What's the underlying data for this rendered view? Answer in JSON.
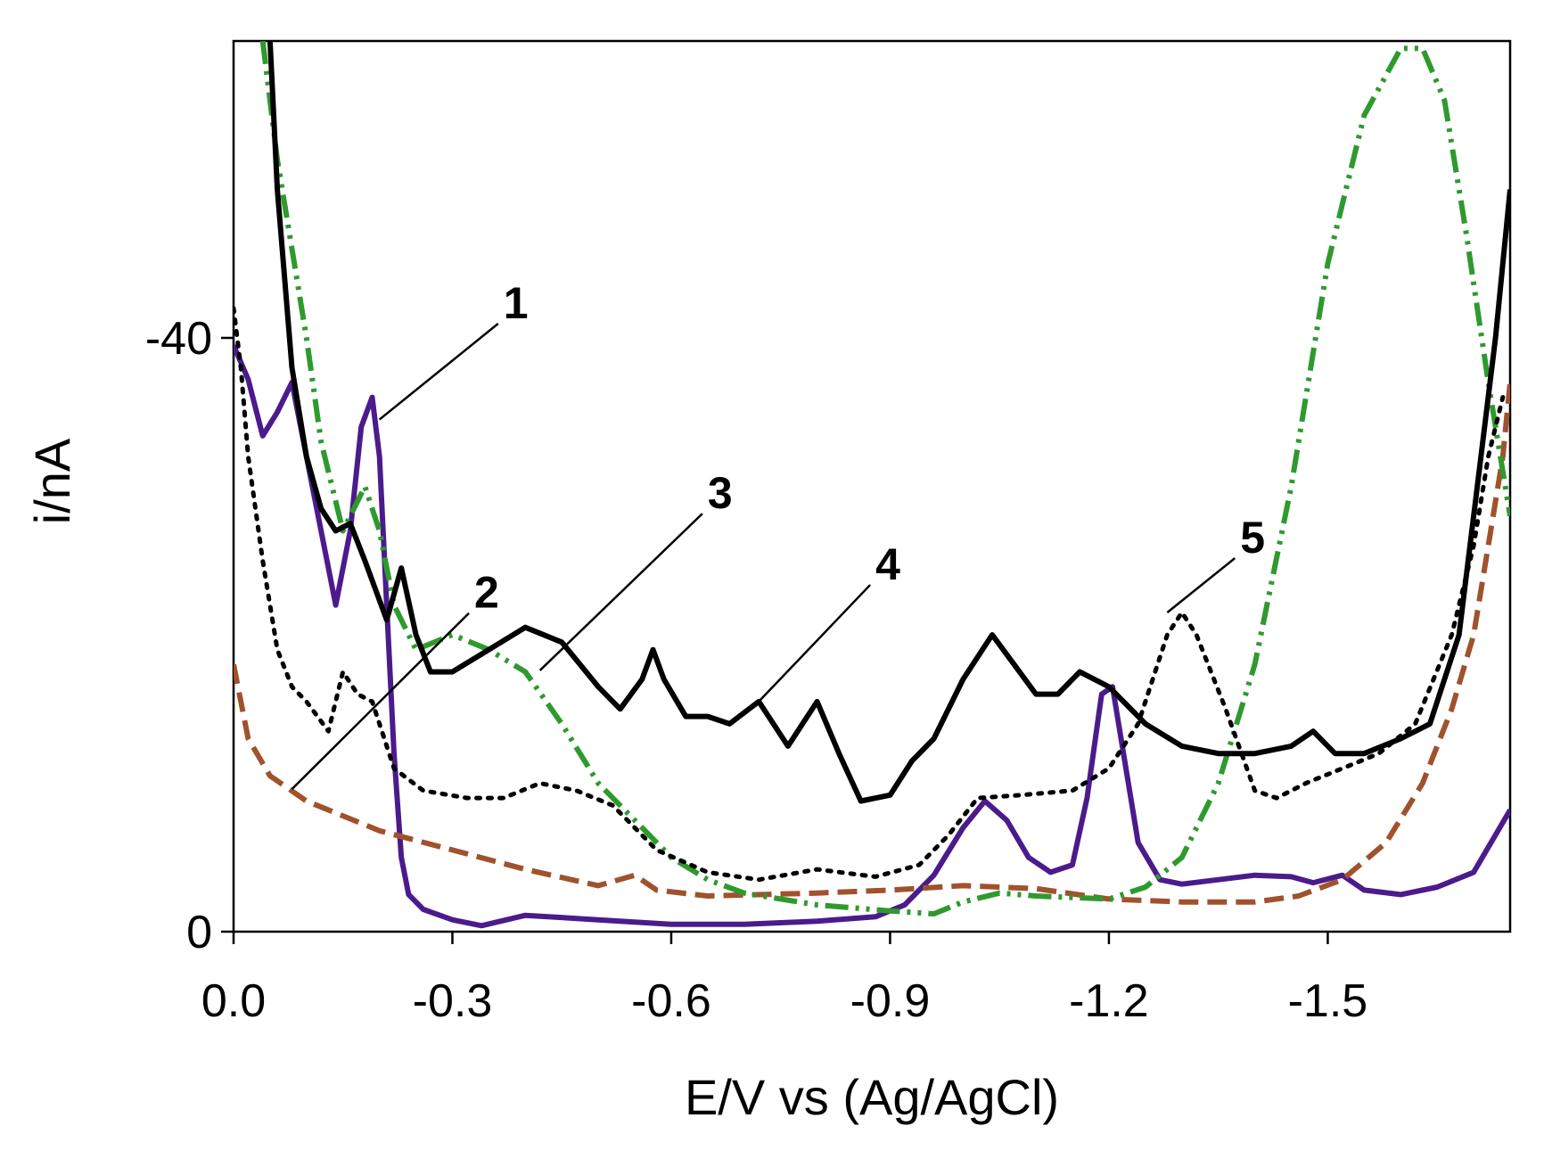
{
  "chart_data": {
    "type": "line",
    "title": "",
    "xlabel": "E/V vs (Ag/AgCl)",
    "ylabel": "i/nA",
    "xlim": [
      0.0,
      -1.75
    ],
    "ylim": [
      0,
      -60
    ],
    "x_ticks": [
      {
        "value": 0.0,
        "label": "0.0"
      },
      {
        "value": -0.3,
        "label": "-0.3"
      },
      {
        "value": -0.6,
        "label": "-0.6"
      },
      {
        "value": -0.9,
        "label": "-0.9"
      },
      {
        "value": -1.2,
        "label": "-1.2"
      },
      {
        "value": -1.5,
        "label": "-1.5"
      }
    ],
    "y_ticks": [
      {
        "value": 0,
        "label": "0"
      },
      {
        "value": -40,
        "label": "-40"
      }
    ],
    "series": [
      {
        "name": "1",
        "color": "#4b1b8c",
        "dash": "solid",
        "points": [
          [
            0,
            -39.5
          ],
          [
            -0.02,
            -37.2
          ],
          [
            -0.04,
            -33.4
          ],
          [
            -0.06,
            -35.0
          ],
          [
            -0.08,
            -37.0
          ],
          [
            -0.1,
            -32.0
          ],
          [
            -0.12,
            -27.0
          ],
          [
            -0.14,
            -22.0
          ],
          [
            -0.16,
            -27.0
          ],
          [
            -0.175,
            -34.0
          ],
          [
            -0.19,
            -36.0
          ],
          [
            -0.2,
            -32.0
          ],
          [
            -0.21,
            -22.0
          ],
          [
            -0.22,
            -12.0
          ],
          [
            -0.23,
            -5.0
          ],
          [
            -0.24,
            -2.5
          ],
          [
            -0.26,
            -1.5
          ],
          [
            -0.3,
            -0.8
          ],
          [
            -0.34,
            -0.4
          ],
          [
            -0.4,
            -1.1
          ],
          [
            -0.5,
            -0.8
          ],
          [
            -0.6,
            -0.5
          ],
          [
            -0.7,
            -0.5
          ],
          [
            -0.8,
            -0.7
          ],
          [
            -0.88,
            -1.0
          ],
          [
            -0.92,
            -1.8
          ],
          [
            -0.96,
            -3.8
          ],
          [
            -1.0,
            -7.0
          ],
          [
            -1.03,
            -8.8
          ],
          [
            -1.06,
            -7.5
          ],
          [
            -1.09,
            -5.0
          ],
          [
            -1.12,
            -4.0
          ],
          [
            -1.15,
            -4.5
          ],
          [
            -1.17,
            -9.0
          ],
          [
            -1.19,
            -16.0
          ],
          [
            -1.205,
            -16.5
          ],
          [
            -1.22,
            -12.0
          ],
          [
            -1.24,
            -6.0
          ],
          [
            -1.27,
            -3.5
          ],
          [
            -1.3,
            -3.2
          ],
          [
            -1.4,
            -3.8
          ],
          [
            -1.45,
            -3.7
          ],
          [
            -1.48,
            -3.3
          ],
          [
            -1.52,
            -3.8
          ],
          [
            -1.55,
            -2.8
          ],
          [
            -1.6,
            -2.5
          ],
          [
            -1.65,
            -3.0
          ],
          [
            -1.7,
            -4.0
          ],
          [
            -1.75,
            -8.2
          ]
        ]
      },
      {
        "name": "2",
        "color": "#a0522d",
        "dash": "dash",
        "points": [
          [
            0,
            -18.0
          ],
          [
            -0.02,
            -13.0
          ],
          [
            -0.05,
            -10.5
          ],
          [
            -0.1,
            -8.8
          ],
          [
            -0.2,
            -6.8
          ],
          [
            -0.3,
            -5.5
          ],
          [
            -0.4,
            -4.2
          ],
          [
            -0.5,
            -3.1
          ],
          [
            -0.55,
            -3.8
          ],
          [
            -0.58,
            -2.8
          ],
          [
            -0.65,
            -2.4
          ],
          [
            -0.8,
            -2.6
          ],
          [
            -0.9,
            -2.8
          ],
          [
            -1.0,
            -3.1
          ],
          [
            -1.1,
            -2.9
          ],
          [
            -1.2,
            -2.2
          ],
          [
            -1.3,
            -2.0
          ],
          [
            -1.4,
            -2.0
          ],
          [
            -1.46,
            -2.4
          ],
          [
            -1.52,
            -3.5
          ],
          [
            -1.58,
            -6.0
          ],
          [
            -1.63,
            -10.0
          ],
          [
            -1.67,
            -15.0
          ],
          [
            -1.7,
            -20.0
          ],
          [
            -1.72,
            -26.0
          ],
          [
            -1.74,
            -32.0
          ],
          [
            -1.75,
            -37.0
          ]
        ]
      },
      {
        "name": "3",
        "color": "#2e9a2e",
        "dash": "dashdotdot",
        "points": [
          [
            -0.04,
            -60.0
          ],
          [
            -0.06,
            -52.0
          ],
          [
            -0.08,
            -46.0
          ],
          [
            -0.1,
            -40.0
          ],
          [
            -0.12,
            -33.0
          ],
          [
            -0.15,
            -27.0
          ],
          [
            -0.18,
            -30.0
          ],
          [
            -0.2,
            -27.0
          ],
          [
            -0.22,
            -22.0
          ],
          [
            -0.25,
            -19.0
          ],
          [
            -0.3,
            -20.0
          ],
          [
            -0.35,
            -19.0
          ],
          [
            -0.4,
            -17.5
          ],
          [
            -0.45,
            -14.0
          ],
          [
            -0.5,
            -10.0
          ],
          [
            -0.55,
            -7.5
          ],
          [
            -0.6,
            -5.0
          ],
          [
            -0.65,
            -3.5
          ],
          [
            -0.7,
            -2.6
          ],
          [
            -0.8,
            -1.8
          ],
          [
            -0.9,
            -1.4
          ],
          [
            -0.96,
            -1.2
          ],
          [
            -1.0,
            -2.0
          ],
          [
            -1.05,
            -2.6
          ],
          [
            -1.1,
            -2.4
          ],
          [
            -1.2,
            -2.2
          ],
          [
            -1.25,
            -3.0
          ],
          [
            -1.3,
            -5.0
          ],
          [
            -1.35,
            -10.0
          ],
          [
            -1.4,
            -18.0
          ],
          [
            -1.45,
            -30.0
          ],
          [
            -1.5,
            -45.0
          ],
          [
            -1.55,
            -55.0
          ],
          [
            -1.6,
            -59.5
          ],
          [
            -1.63,
            -59.5
          ],
          [
            -1.66,
            -56.0
          ],
          [
            -1.69,
            -47.0
          ],
          [
            -1.72,
            -37.0
          ],
          [
            -1.75,
            -28.0
          ]
        ]
      },
      {
        "name": "4",
        "color": "#000000",
        "dash": "solid",
        "points": [
          [
            -0.05,
            -60.0
          ],
          [
            -0.06,
            -50.0
          ],
          [
            -0.07,
            -44.0
          ],
          [
            -0.08,
            -38.0
          ],
          [
            -0.1,
            -32.0
          ],
          [
            -0.12,
            -28.5
          ],
          [
            -0.14,
            -27.0
          ],
          [
            -0.16,
            -27.5
          ],
          [
            -0.18,
            -25.0
          ],
          [
            -0.21,
            -21.0
          ],
          [
            -0.23,
            -24.5
          ],
          [
            -0.25,
            -20.0
          ],
          [
            -0.27,
            -17.5
          ],
          [
            -0.3,
            -17.5
          ],
          [
            -0.35,
            -19.0
          ],
          [
            -0.4,
            -20.5
          ],
          [
            -0.45,
            -19.5
          ],
          [
            -0.5,
            -16.5
          ],
          [
            -0.53,
            -15.0
          ],
          [
            -0.56,
            -17.0
          ],
          [
            -0.575,
            -19.0
          ],
          [
            -0.59,
            -17.0
          ],
          [
            -0.62,
            -14.5
          ],
          [
            -0.65,
            -14.5
          ],
          [
            -0.68,
            -14.0
          ],
          [
            -0.72,
            -15.5
          ],
          [
            -0.76,
            -12.5
          ],
          [
            -0.8,
            -15.5
          ],
          [
            -0.83,
            -12.0
          ],
          [
            -0.86,
            -8.8
          ],
          [
            -0.9,
            -9.2
          ],
          [
            -0.93,
            -11.5
          ],
          [
            -0.96,
            -13.0
          ],
          [
            -1.0,
            -17.0
          ],
          [
            -1.04,
            -20.0
          ],
          [
            -1.07,
            -18.0
          ],
          [
            -1.1,
            -16.0
          ],
          [
            -1.13,
            -16.0
          ],
          [
            -1.16,
            -17.5
          ],
          [
            -1.2,
            -16.5
          ],
          [
            -1.25,
            -14.0
          ],
          [
            -1.3,
            -12.5
          ],
          [
            -1.35,
            -12.0
          ],
          [
            -1.4,
            -12.0
          ],
          [
            -1.45,
            -12.5
          ],
          [
            -1.48,
            -13.5
          ],
          [
            -1.51,
            -12.0
          ],
          [
            -1.55,
            -12.0
          ],
          [
            -1.6,
            -13.0
          ],
          [
            -1.64,
            -14.0
          ],
          [
            -1.68,
            -20.0
          ],
          [
            -1.7,
            -28.0
          ],
          [
            -1.73,
            -40.0
          ],
          [
            -1.75,
            -50.0
          ]
        ]
      },
      {
        "name": "5",
        "color": "#000000",
        "dash": "dot",
        "points": [
          [
            0,
            -42.0
          ],
          [
            -0.01,
            -38.0
          ],
          [
            -0.02,
            -32.0
          ],
          [
            -0.04,
            -25.0
          ],
          [
            -0.06,
            -19.0
          ],
          [
            -0.08,
            -16.5
          ],
          [
            -0.1,
            -15.5
          ],
          [
            -0.13,
            -13.5
          ],
          [
            -0.15,
            -17.5
          ],
          [
            -0.17,
            -16.0
          ],
          [
            -0.19,
            -15.5
          ],
          [
            -0.22,
            -11.0
          ],
          [
            -0.26,
            -9.5
          ],
          [
            -0.32,
            -9.0
          ],
          [
            -0.37,
            -9.0
          ],
          [
            -0.42,
            -10.0
          ],
          [
            -0.47,
            -9.5
          ],
          [
            -0.52,
            -8.5
          ],
          [
            -0.58,
            -5.5
          ],
          [
            -0.65,
            -4.0
          ],
          [
            -0.72,
            -3.5
          ],
          [
            -0.8,
            -4.2
          ],
          [
            -0.88,
            -3.7
          ],
          [
            -0.94,
            -4.5
          ],
          [
            -0.98,
            -6.5
          ],
          [
            -1.02,
            -9.0
          ],
          [
            -1.08,
            -9.2
          ],
          [
            -1.15,
            -9.5
          ],
          [
            -1.2,
            -11.0
          ],
          [
            -1.24,
            -14.0
          ],
          [
            -1.28,
            -20.0
          ],
          [
            -1.3,
            -21.5
          ],
          [
            -1.32,
            -20.0
          ],
          [
            -1.36,
            -15.0
          ],
          [
            -1.4,
            -9.5
          ],
          [
            -1.43,
            -9.0
          ],
          [
            -1.47,
            -10.0
          ],
          [
            -1.52,
            -11.0
          ],
          [
            -1.57,
            -12.0
          ],
          [
            -1.62,
            -14.0
          ],
          [
            -1.67,
            -20.0
          ],
          [
            -1.7,
            -26.0
          ],
          [
            -1.72,
            -32.0
          ],
          [
            -1.74,
            -36.0
          ]
        ]
      }
    ],
    "annotations": [
      {
        "label": "1",
        "series": "1",
        "point": [
          -0.2,
          -34.5
        ],
        "text_at": [
          -0.37,
          -41.8
        ]
      },
      {
        "label": "2",
        "series": "2",
        "point": [
          -0.08,
          -9.6
        ],
        "text_at": [
          -0.33,
          -22.3
        ]
      },
      {
        "label": "3",
        "series": "3",
        "point": [
          -0.42,
          -17.6
        ],
        "text_at": [
          -0.65,
          -29.0
        ]
      },
      {
        "label": "4",
        "series": "4",
        "point": [
          -0.72,
          -15.5
        ],
        "text_at": [
          -0.88,
          -24.2
        ]
      },
      {
        "label": "5",
        "series": "5",
        "point": [
          -1.28,
          -21.5
        ],
        "text_at": [
          -1.38,
          -26.0
        ]
      }
    ]
  }
}
